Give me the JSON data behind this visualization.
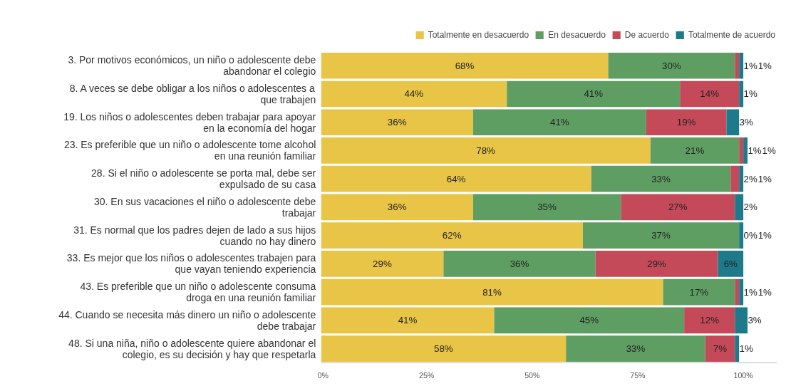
{
  "chart_data": {
    "type": "bar",
    "orientation": "horizontal",
    "stacked": true,
    "legend": "top",
    "categories": [
      "3. Por motivos económicos, un niño o adolescente debe abandonar el colegio",
      "8. A veces se debe obligar a los niños o adolescentes a que trabajen",
      "19. Los niños o adolescentes deben trabajar para apoyar en la economía del hogar",
      "23. Es preferible que un niño o adolescente tome alcohol en una reunión familiar",
      "28. Si el niño o adolescente se porta mal, debe ser expulsado de su casa",
      "30. En sus vacaciones el niño o adolescente debe trabajar",
      "31. Es normal que los padres dejen de lado a sus hijos cuando no hay dinero",
      "33. Es mejor que los niños o adolescentes trabajen para que vayan teniendo experiencia",
      "43. Es preferible que un niño o adolescente consuma droga en una reunión familiar",
      "44. Cuando se necesita más dinero un niño o adolescente debe trabajar",
      "48. Si una niña, niño o adolescente quiere abandonar el colegio, es su decisión y hay que respetarla"
    ],
    "series": [
      {
        "name": "Totalmente en desacuerdo",
        "color": "#e8c547",
        "values": [
          68,
          44,
          36,
          78,
          64,
          36,
          62,
          29,
          81,
          41,
          58
        ],
        "value_labels": [
          "68%",
          "44%",
          "36%",
          "78%",
          "64%",
          "36%",
          "62%",
          "29%",
          "81%",
          "41%",
          "58%"
        ]
      },
      {
        "name": "En desacuerdo",
        "color": "#5f9e63",
        "values": [
          30,
          41,
          41,
          21,
          33,
          35,
          37,
          36,
          17,
          45,
          33
        ],
        "value_labels": [
          "30%",
          "41%",
          "41%",
          "21%",
          "33%",
          "35%",
          "37%",
          "36%",
          "17%",
          "45%",
          "33%"
        ]
      },
      {
        "name": "De acuerdo",
        "color": "#c44a5a",
        "values": [
          1,
          14,
          19,
          1,
          2,
          27,
          0,
          29,
          1,
          12,
          7
        ],
        "value_labels": [
          "1%",
          "14%",
          "19%",
          "1%",
          "2%",
          "27%",
          "0%",
          "29%",
          "1%",
          "12%",
          "7%"
        ]
      },
      {
        "name": "Totalmente de acuerdo",
        "color": "#1c7a8a",
        "values": [
          1,
          1,
          3,
          1,
          1,
          2,
          1,
          6,
          1,
          3,
          1
        ],
        "value_labels": [
          "1%",
          "1%",
          "3%",
          "1%",
          "1%",
          "2%",
          "1%",
          "6%",
          "1%",
          "3%",
          "1%"
        ]
      }
    ],
    "xlim": [
      0,
      108
    ],
    "xticks": [
      {
        "value": 0,
        "label": "0%"
      },
      {
        "value": 25,
        "label": "25%"
      },
      {
        "value": 50,
        "label": "50%"
      },
      {
        "value": 75,
        "label": "75%"
      },
      {
        "value": 100,
        "label": "100%"
      }
    ]
  }
}
